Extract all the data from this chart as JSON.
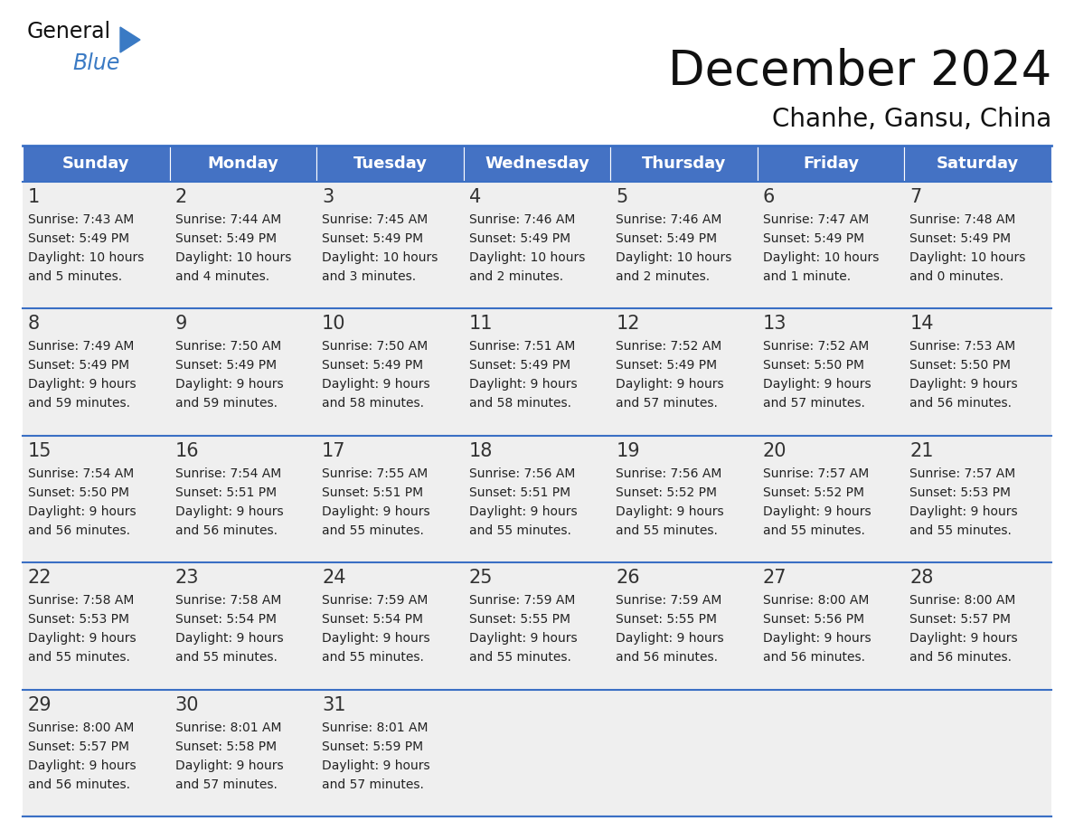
{
  "title": "December 2024",
  "subtitle": "Chanhe, Gansu, China",
  "header_bg_color": "#4472C4",
  "header_text_color": "#FFFFFF",
  "day_names": [
    "Sunday",
    "Monday",
    "Tuesday",
    "Wednesday",
    "Thursday",
    "Friday",
    "Saturday"
  ],
  "cell_bg_color": "#EFEFEF",
  "info_text_color": "#222222",
  "date_num_color": "#333333",
  "grid_line_color": "#3A6FC4",
  "background_color": "#FFFFFF",
  "calendar_data": [
    [
      {
        "day": 1,
        "sunrise": "7:43 AM",
        "sunset": "5:49 PM",
        "daylight": "10 hours and 5 minutes."
      },
      {
        "day": 2,
        "sunrise": "7:44 AM",
        "sunset": "5:49 PM",
        "daylight": "10 hours and 4 minutes."
      },
      {
        "day": 3,
        "sunrise": "7:45 AM",
        "sunset": "5:49 PM",
        "daylight": "10 hours and 3 minutes."
      },
      {
        "day": 4,
        "sunrise": "7:46 AM",
        "sunset": "5:49 PM",
        "daylight": "10 hours and 2 minutes."
      },
      {
        "day": 5,
        "sunrise": "7:46 AM",
        "sunset": "5:49 PM",
        "daylight": "10 hours and 2 minutes."
      },
      {
        "day": 6,
        "sunrise": "7:47 AM",
        "sunset": "5:49 PM",
        "daylight": "10 hours and 1 minute."
      },
      {
        "day": 7,
        "sunrise": "7:48 AM",
        "sunset": "5:49 PM",
        "daylight": "10 hours and 0 minutes."
      }
    ],
    [
      {
        "day": 8,
        "sunrise": "7:49 AM",
        "sunset": "5:49 PM",
        "daylight": "9 hours and 59 minutes."
      },
      {
        "day": 9,
        "sunrise": "7:50 AM",
        "sunset": "5:49 PM",
        "daylight": "9 hours and 59 minutes."
      },
      {
        "day": 10,
        "sunrise": "7:50 AM",
        "sunset": "5:49 PM",
        "daylight": "9 hours and 58 minutes."
      },
      {
        "day": 11,
        "sunrise": "7:51 AM",
        "sunset": "5:49 PM",
        "daylight": "9 hours and 58 minutes."
      },
      {
        "day": 12,
        "sunrise": "7:52 AM",
        "sunset": "5:49 PM",
        "daylight": "9 hours and 57 minutes."
      },
      {
        "day": 13,
        "sunrise": "7:52 AM",
        "sunset": "5:50 PM",
        "daylight": "9 hours and 57 minutes."
      },
      {
        "day": 14,
        "sunrise": "7:53 AM",
        "sunset": "5:50 PM",
        "daylight": "9 hours and 56 minutes."
      }
    ],
    [
      {
        "day": 15,
        "sunrise": "7:54 AM",
        "sunset": "5:50 PM",
        "daylight": "9 hours and 56 minutes."
      },
      {
        "day": 16,
        "sunrise": "7:54 AM",
        "sunset": "5:51 PM",
        "daylight": "9 hours and 56 minutes."
      },
      {
        "day": 17,
        "sunrise": "7:55 AM",
        "sunset": "5:51 PM",
        "daylight": "9 hours and 55 minutes."
      },
      {
        "day": 18,
        "sunrise": "7:56 AM",
        "sunset": "5:51 PM",
        "daylight": "9 hours and 55 minutes."
      },
      {
        "day": 19,
        "sunrise": "7:56 AM",
        "sunset": "5:52 PM",
        "daylight": "9 hours and 55 minutes."
      },
      {
        "day": 20,
        "sunrise": "7:57 AM",
        "sunset": "5:52 PM",
        "daylight": "9 hours and 55 minutes."
      },
      {
        "day": 21,
        "sunrise": "7:57 AM",
        "sunset": "5:53 PM",
        "daylight": "9 hours and 55 minutes."
      }
    ],
    [
      {
        "day": 22,
        "sunrise": "7:58 AM",
        "sunset": "5:53 PM",
        "daylight": "9 hours and 55 minutes."
      },
      {
        "day": 23,
        "sunrise": "7:58 AM",
        "sunset": "5:54 PM",
        "daylight": "9 hours and 55 minutes."
      },
      {
        "day": 24,
        "sunrise": "7:59 AM",
        "sunset": "5:54 PM",
        "daylight": "9 hours and 55 minutes."
      },
      {
        "day": 25,
        "sunrise": "7:59 AM",
        "sunset": "5:55 PM",
        "daylight": "9 hours and 55 minutes."
      },
      {
        "day": 26,
        "sunrise": "7:59 AM",
        "sunset": "5:55 PM",
        "daylight": "9 hours and 56 minutes."
      },
      {
        "day": 27,
        "sunrise": "8:00 AM",
        "sunset": "5:56 PM",
        "daylight": "9 hours and 56 minutes."
      },
      {
        "day": 28,
        "sunrise": "8:00 AM",
        "sunset": "5:57 PM",
        "daylight": "9 hours and 56 minutes."
      }
    ],
    [
      {
        "day": 29,
        "sunrise": "8:00 AM",
        "sunset": "5:57 PM",
        "daylight": "9 hours and 56 minutes."
      },
      {
        "day": 30,
        "sunrise": "8:01 AM",
        "sunset": "5:58 PM",
        "daylight": "9 hours and 57 minutes."
      },
      {
        "day": 31,
        "sunrise": "8:01 AM",
        "sunset": "5:59 PM",
        "daylight": "9 hours and 57 minutes."
      },
      null,
      null,
      null,
      null
    ]
  ],
  "title_fontsize": 38,
  "subtitle_fontsize": 20,
  "header_fontsize": 13,
  "day_num_fontsize": 15,
  "info_fontsize": 10
}
